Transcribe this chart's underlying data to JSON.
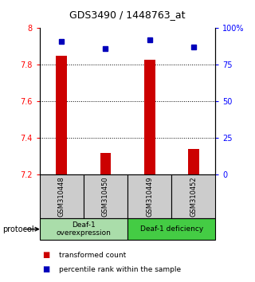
{
  "title": "GDS3490 / 1448763_at",
  "samples": [
    "GSM310448",
    "GSM310450",
    "GSM310449",
    "GSM310452"
  ],
  "transformed_counts": [
    7.85,
    7.32,
    7.83,
    7.34
  ],
  "percentile_ranks": [
    91,
    86,
    92,
    87
  ],
  "ylim_left": [
    7.2,
    8.0
  ],
  "ylim_right": [
    0,
    100
  ],
  "yticks_left": [
    7.2,
    7.4,
    7.6,
    7.8,
    8.0
  ],
  "ytick_labels_left": [
    "7.2",
    "7.4",
    "7.6",
    "7.8",
    "8"
  ],
  "yticks_right": [
    0,
    25,
    50,
    75,
    100
  ],
  "ytick_labels_right": [
    "0",
    "25",
    "50",
    "75",
    "100%"
  ],
  "bar_color": "#cc0000",
  "dot_color": "#0000bb",
  "bar_bottom": 7.2,
  "groups": [
    {
      "label": "Deaf-1\noverexpression",
      "samples": [
        0,
        1
      ],
      "color": "#aaddaa"
    },
    {
      "label": "Deaf-1 deficiency",
      "samples": [
        2,
        3
      ],
      "color": "#44cc44"
    }
  ],
  "protocol_label": "protocol",
  "legend_bar_label": "transformed count",
  "legend_dot_label": "percentile rank within the sample",
  "sample_box_color": "#cccccc"
}
